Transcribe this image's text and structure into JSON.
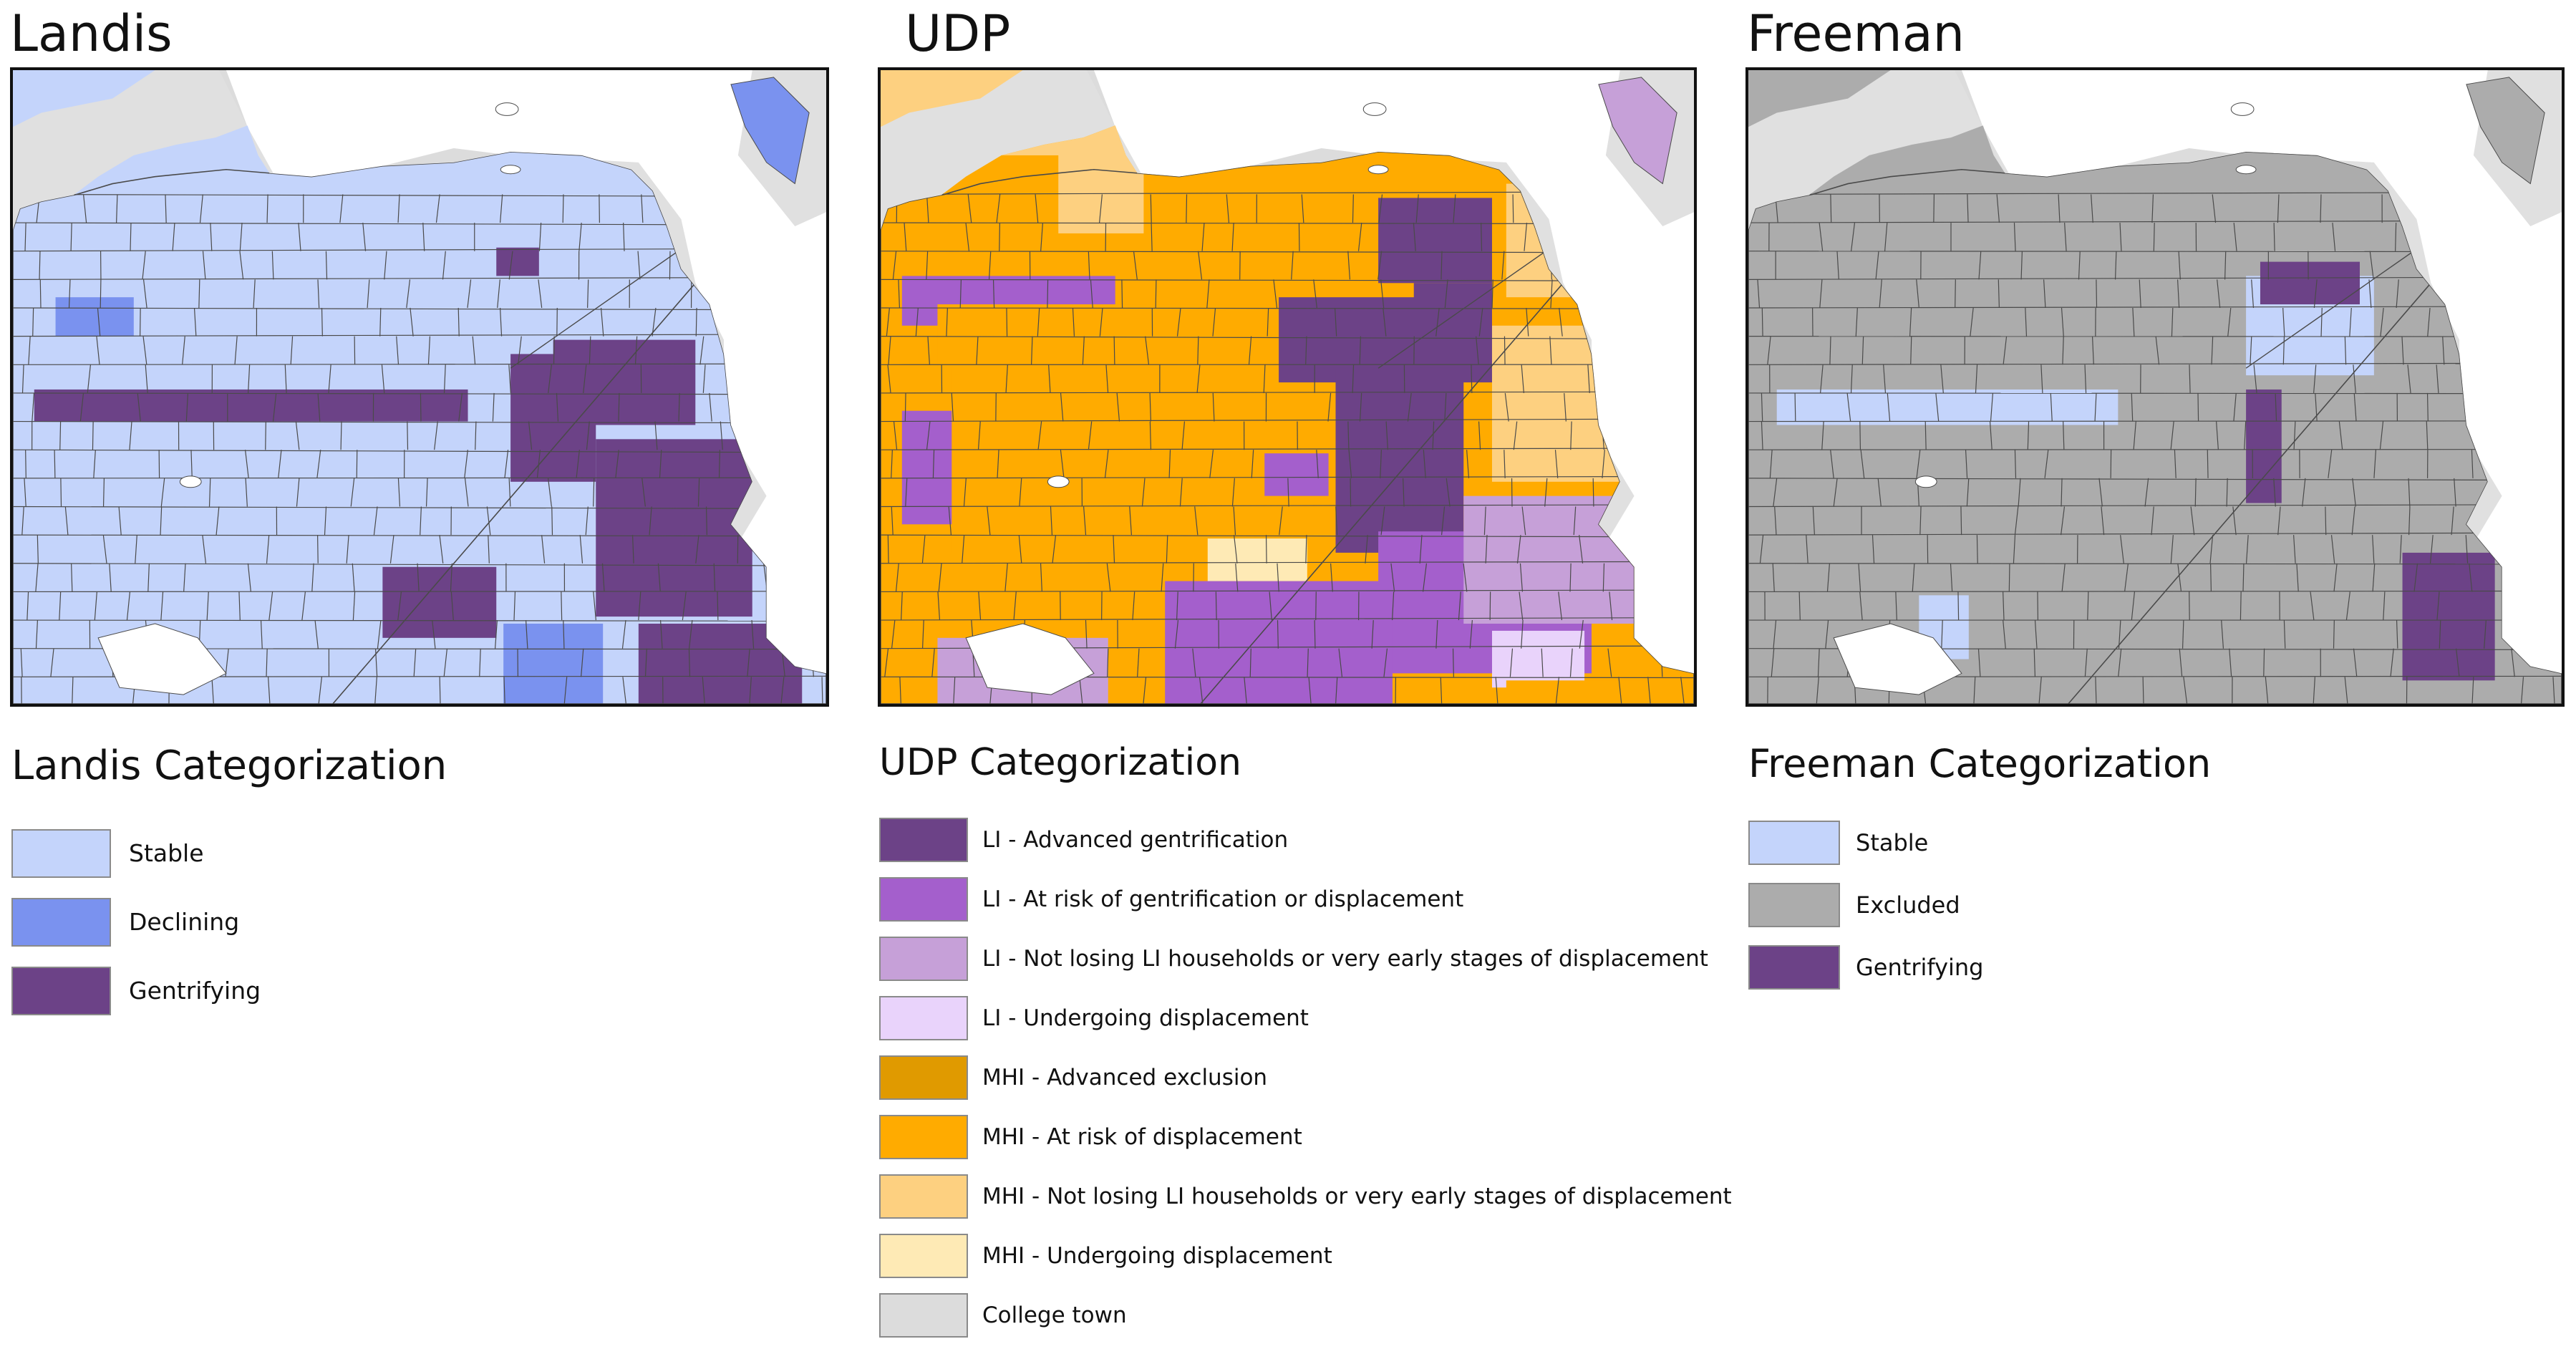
{
  "colors": {
    "background_land": "#e0e0e0",
    "water": "#ffffff",
    "tract_line": "#4a4a4a"
  },
  "panels": [
    {
      "title": "Landis",
      "legend_title": "Landis Categorization",
      "base_category": 0,
      "categories": [
        {
          "label": "Stable",
          "color": "#c4d4fb"
        },
        {
          "label": "Declining",
          "color": "#7a92ef"
        },
        {
          "label": "Gentrifying",
          "color": "#6c4287"
        }
      ]
    },
    {
      "title": "UDP",
      "legend_title": "UDP Categorization",
      "base_category": 5,
      "categories": [
        {
          "label": "LI - Advanced gentrification",
          "color": "#6c4287"
        },
        {
          "label": "LI - At risk of gentrification or displacement",
          "color": "#a45fcc"
        },
        {
          "label": "LI - Not losing LI households or very early stages of displacement",
          "color": "#c6a0d8"
        },
        {
          "label": "LI - Undergoing displacement",
          "color": "#e9d3fb"
        },
        {
          "label": "MHI - Advanced exclusion",
          "color": "#e09a00"
        },
        {
          "label": "MHI - At risk of displacement",
          "color": "#ffab00"
        },
        {
          "label": "MHI - Not losing LI households or very early stages of displacement",
          "color": "#fdd080"
        },
        {
          "label": "MHI - Undergoing displacement",
          "color": "#feeab5"
        },
        {
          "label": "College town",
          "color": "#dcdcdc"
        }
      ]
    },
    {
      "title": "Freeman",
      "legend_title": "Freeman Categorization",
      "base_category": 1,
      "categories": [
        {
          "label": "Stable",
          "color": "#c4d4fb"
        },
        {
          "label": "Excluded",
          "color": "#acacac"
        },
        {
          "label": "Gentrifying",
          "color": "#6c4287"
        }
      ]
    }
  ]
}
